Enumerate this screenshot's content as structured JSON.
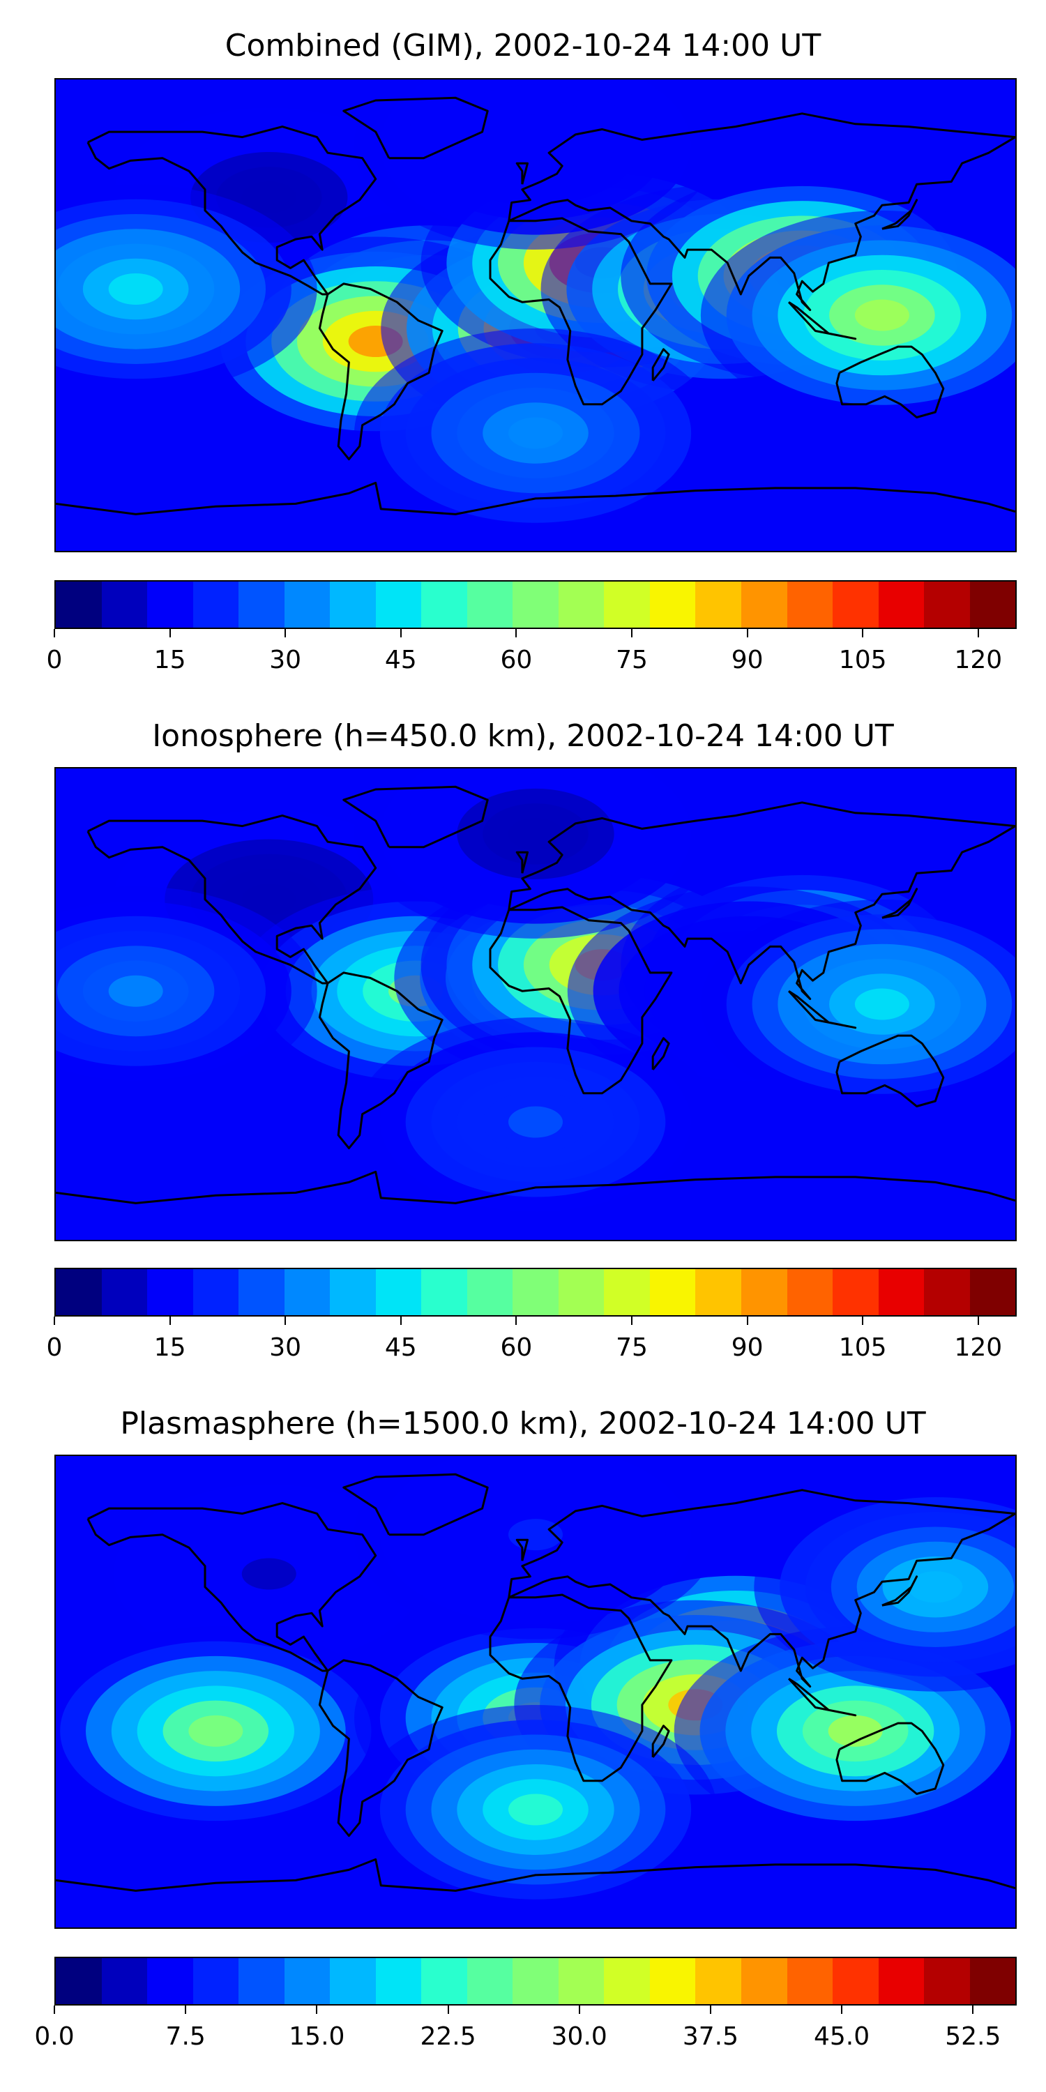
{
  "panels": [
    {
      "title": "Combined (GIM), 2002-10-24 14:00 UT",
      "colorbar": {
        "min": 0,
        "max": 125,
        "ticks": [
          "0",
          "15",
          "30",
          "45",
          "60",
          "75",
          "90",
          "105",
          "120"
        ],
        "tick_values": [
          0,
          15,
          30,
          45,
          60,
          75,
          90,
          105,
          120
        ]
      },
      "blobs": [
        {
          "lon": -100,
          "lat": 45,
          "value": 10
        },
        {
          "lon": -40,
          "lat": 0,
          "value": 80
        },
        {
          "lon": -60,
          "lat": -10,
          "value": 95
        },
        {
          "lon": 10,
          "lat": -5,
          "value": 110
        },
        {
          "lon": 25,
          "lat": 20,
          "value": 112
        },
        {
          "lon": 70,
          "lat": 10,
          "value": 85
        },
        {
          "lon": 100,
          "lat": 15,
          "value": 95
        },
        {
          "lon": 130,
          "lat": 0,
          "value": 70
        },
        {
          "lon": -150,
          "lat": 10,
          "value": 45
        },
        {
          "lon": 0,
          "lat": -45,
          "value": 35
        },
        {
          "lon": 0,
          "lat": 65,
          "value": 15
        }
      ]
    },
    {
      "title": "Ionosphere  (h=450.0 km), 2002-10-24 14:00 UT",
      "colorbar": {
        "min": 0,
        "max": 125,
        "ticks": [
          "0",
          "15",
          "30",
          "45",
          "60",
          "75",
          "90",
          "105",
          "120"
        ],
        "tick_values": [
          0,
          15,
          30,
          45,
          60,
          75,
          90,
          105,
          120
        ]
      },
      "blobs": [
        {
          "lon": -100,
          "lat": 40,
          "value": 8
        },
        {
          "lon": -45,
          "lat": 5,
          "value": 60
        },
        {
          "lon": 15,
          "lat": 10,
          "value": 90
        },
        {
          "lon": 25,
          "lat": 15,
          "value": 85
        },
        {
          "lon": 100,
          "lat": 15,
          "value": 60
        },
        {
          "lon": 80,
          "lat": 5,
          "value": 15
        },
        {
          "lon": 130,
          "lat": 0,
          "value": 45
        },
        {
          "lon": -150,
          "lat": 5,
          "value": 30
        },
        {
          "lon": 0,
          "lat": -45,
          "value": 25
        },
        {
          "lon": 0,
          "lat": 65,
          "value": 10
        }
      ]
    },
    {
      "title": "Plasmasphere (h=1500.0 km), 2002-10-24 14:00 UT",
      "colorbar": {
        "min": 0,
        "max": 55,
        "ticks": [
          "0.0",
          "7.5",
          "15.0",
          "22.5",
          "30.0",
          "37.5",
          "45.0",
          "52.5"
        ],
        "tick_values": [
          0,
          7.5,
          15,
          22.5,
          30,
          37.5,
          45,
          52.5
        ]
      },
      "blobs": [
        {
          "lon": -100,
          "lat": 45,
          "value": 5
        },
        {
          "lon": -120,
          "lat": -15,
          "value": 28
        },
        {
          "lon": 0,
          "lat": -10,
          "value": 28
        },
        {
          "lon": 75,
          "lat": 10,
          "value": 47
        },
        {
          "lon": 60,
          "lat": -5,
          "value": 38
        },
        {
          "lon": 120,
          "lat": -15,
          "value": 30
        },
        {
          "lon": 0,
          "lat": -45,
          "value": 22
        },
        {
          "lon": 0,
          "lat": 60,
          "value": 8
        },
        {
          "lon": 150,
          "lat": 40,
          "value": 18
        }
      ]
    }
  ],
  "colors": {
    "jet": [
      "#00007f",
      "#0000bd",
      "#0000fa",
      "#0022ff",
      "#0054ff",
      "#0088ff",
      "#00b8ff",
      "#00e4f7",
      "#29ffce",
      "#56ffa0",
      "#80ff77",
      "#a3ff53",
      "#d1ff26",
      "#f9f500",
      "#ffc400",
      "#ff9400",
      "#ff6300",
      "#ff3200",
      "#e80000",
      "#b40000",
      "#7f0000"
    ],
    "coastline": "#000000"
  }
}
